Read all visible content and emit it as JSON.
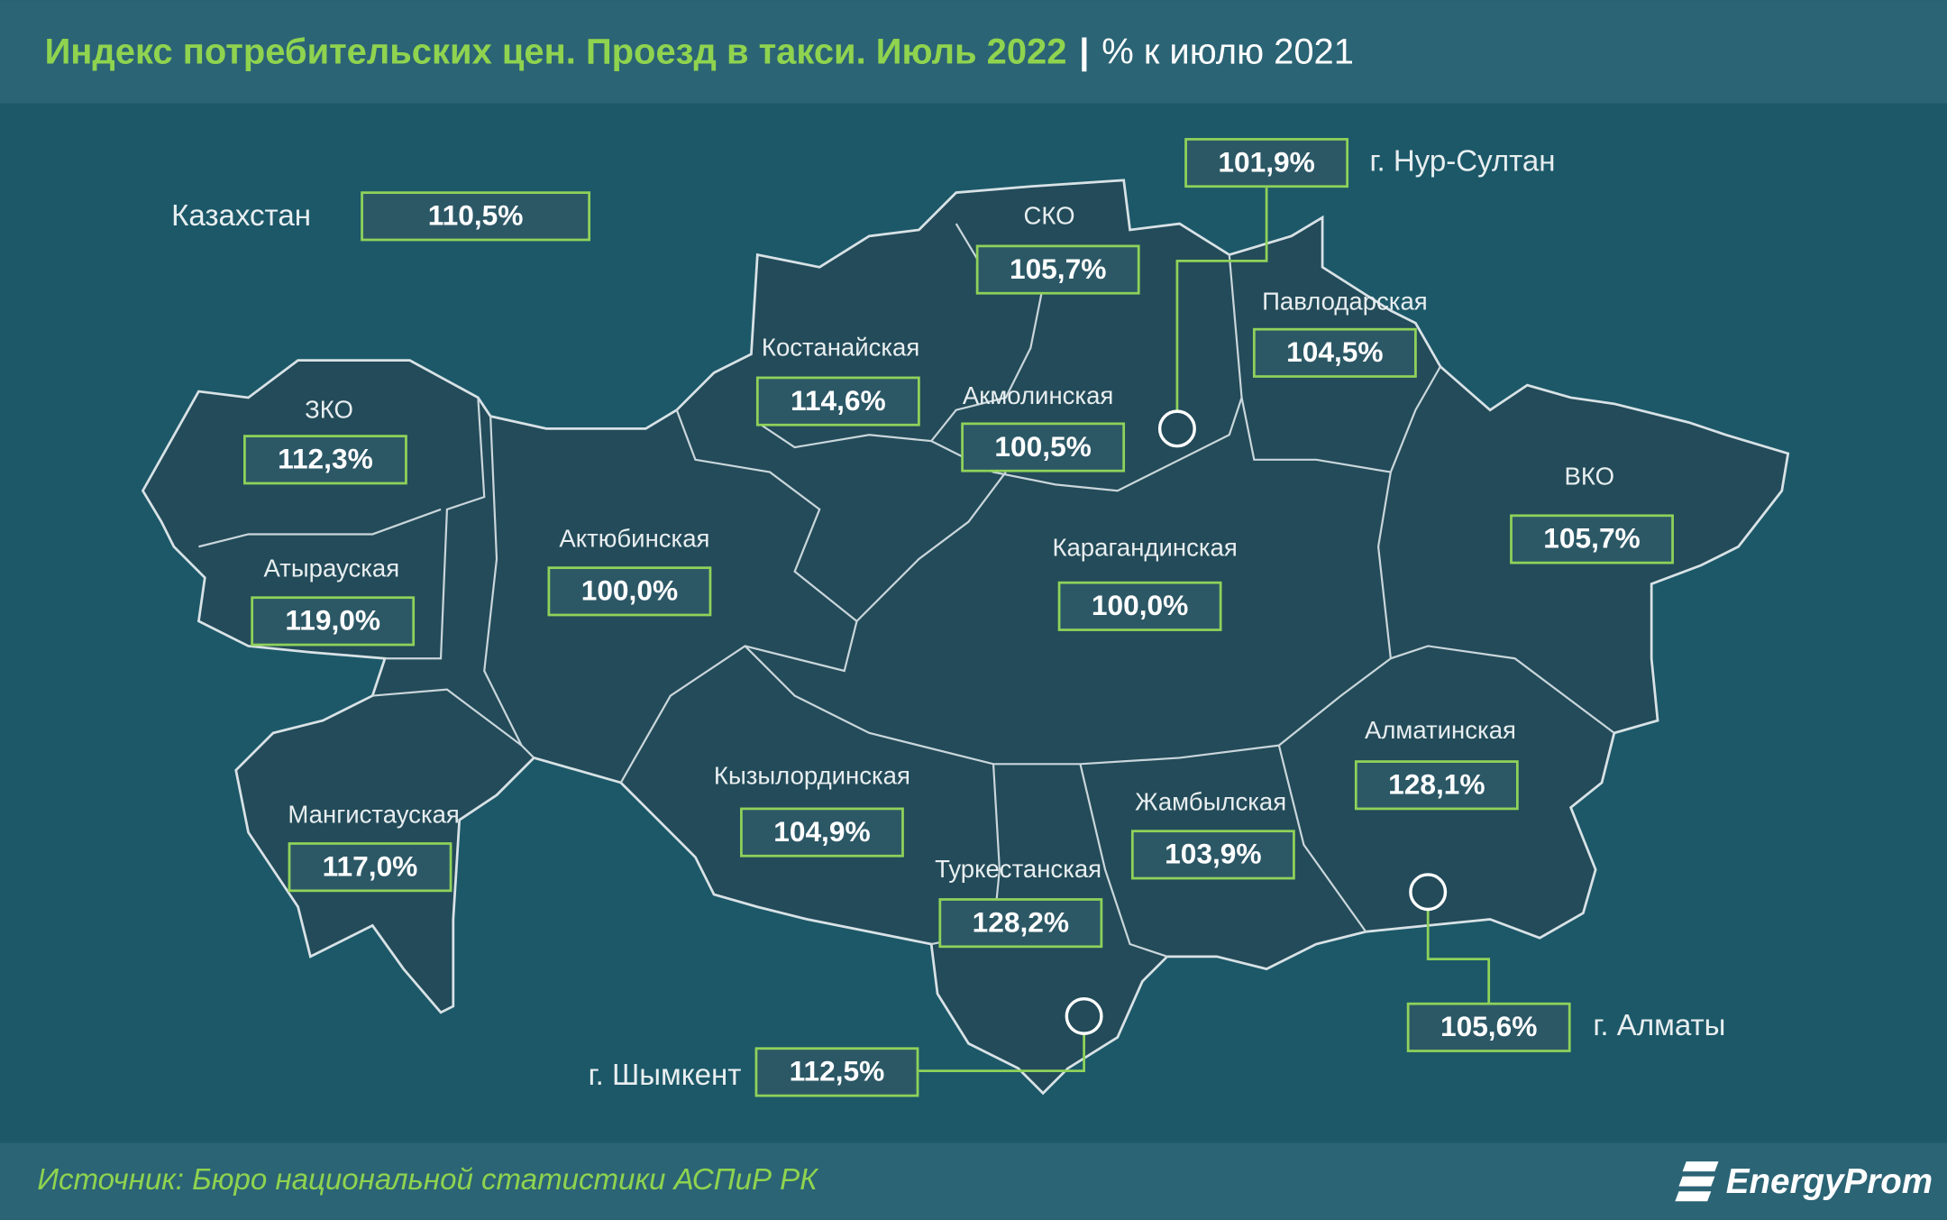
{
  "header": {
    "title": "Индекс потребительских цен. Проезд в такси. Июль 2022",
    "separator": "|",
    "subtitle": "% к июлю 2021"
  },
  "country": {
    "name": "Казахстан",
    "value": "110,5%"
  },
  "regions": [
    {
      "name": "СКО",
      "value": "105,7%"
    },
    {
      "name": "Павлодарская",
      "value": "104,5%"
    },
    {
      "name": "Костанайская",
      "value": "114,6%"
    },
    {
      "name": "Акмолинская",
      "value": "100,5%"
    },
    {
      "name": "ЗКО",
      "value": "112,3%"
    },
    {
      "name": "ВКО",
      "value": "105,7%"
    },
    {
      "name": "Актюбинская",
      "value": "100,0%"
    },
    {
      "name": "Карагандинская",
      "value": "100,0%"
    },
    {
      "name": "Атырауская",
      "value": "119,0%"
    },
    {
      "name": "Алматинская",
      "value": "128,1%"
    },
    {
      "name": "Кызылординская",
      "value": "104,9%"
    },
    {
      "name": "Жамбылская",
      "value": "103,9%"
    },
    {
      "name": "Мангистауская",
      "value": "117,0%"
    },
    {
      "name": "Туркестанская",
      "value": "128,2%"
    }
  ],
  "cities": [
    {
      "name": "г. Нур-Султан",
      "value": "101,9%"
    },
    {
      "name": "г. Шымкент",
      "value": "112,5%"
    },
    {
      "name": "г. Алматы",
      "value": "105,6%"
    }
  ],
  "footer": {
    "source": "Источник: Бюро национальной статистики АСПиР РК",
    "logo": "EnergyProm"
  }
}
